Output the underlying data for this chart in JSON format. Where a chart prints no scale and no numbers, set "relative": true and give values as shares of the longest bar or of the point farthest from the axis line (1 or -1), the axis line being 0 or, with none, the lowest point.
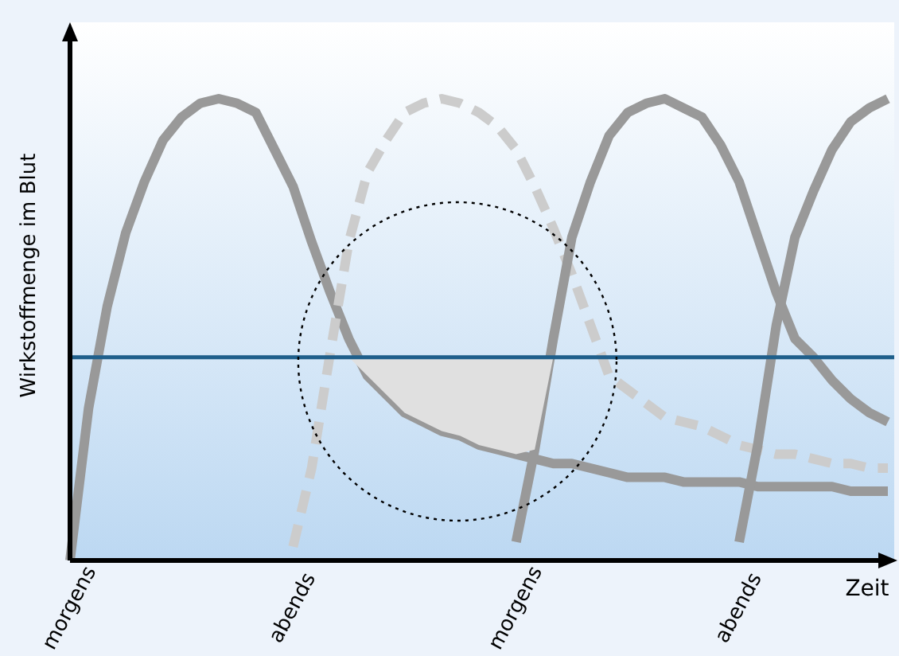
{
  "chart_data": {
    "type": "line",
    "relative": true,
    "ylabel": "Wirkstoffmenge im Blut",
    "xlabel": "Zeit",
    "categories": [
      "morgens",
      null,
      null,
      null,
      null,
      null,
      null,
      null,
      null,
      null,
      null,
      null,
      "abends",
      null,
      null,
      null,
      null,
      null,
      null,
      null,
      null,
      null,
      null,
      null,
      "morgens",
      null,
      null,
      null,
      null,
      null,
      null,
      null,
      null,
      null,
      null,
      null,
      "abends",
      null,
      null,
      null,
      null,
      null,
      null,
      null,
      null
    ],
    "grid": false,
    "marker": "none",
    "line_style": "solid",
    "series": [
      {
        "color": "#999999",
        "values": [
          0,
          0.33,
          0.55,
          0.71,
          0.82,
          0.91,
          0.96,
          0.99,
          1,
          0.99,
          0.97,
          0.89,
          0.81,
          0.69,
          0.58,
          0.48,
          0.4,
          0.36,
          0.32,
          0.3,
          0.28,
          0.27,
          0.25,
          0.24,
          0.23,
          0.22,
          0.21,
          0.21,
          0.2,
          0.19,
          0.18,
          0.18,
          0.18,
          0.17,
          0.17,
          0.17,
          0.17,
          0.16,
          0.16,
          0.16,
          0.16,
          0.16,
          0.15,
          0.15,
          0.15
        ]
      },
      {
        "color": "#cccccc",
        "line_style": "dashed",
        "values": [
          null,
          null,
          null,
          null,
          null,
          null,
          null,
          null,
          null,
          null,
          null,
          null,
          0.03,
          0.2,
          0.45,
          0.69,
          0.84,
          0.91,
          0.97,
          0.99,
          1,
          0.99,
          0.97,
          0.94,
          0.89,
          0.81,
          0.72,
          0.62,
          0.51,
          0.4,
          0.37,
          0.34,
          0.31,
          0.3,
          0.29,
          0.27,
          0.25,
          0.24,
          0.23,
          0.23,
          0.22,
          0.21,
          0.21,
          0.2,
          0.2
        ]
      },
      {
        "color": "#999999",
        "values": [
          null,
          null,
          null,
          null,
          null,
          null,
          null,
          null,
          null,
          null,
          null,
          null,
          null,
          null,
          null,
          null,
          null,
          null,
          null,
          null,
          null,
          null,
          null,
          null,
          0.04,
          0.24,
          0.48,
          0.7,
          0.82,
          0.92,
          0.97,
          0.99,
          1,
          0.98,
          0.96,
          0.9,
          0.82,
          0.7,
          0.58,
          0.48,
          0.44,
          0.39,
          0.35,
          0.32,
          0.3
        ]
      },
      {
        "color": "#999999",
        "values": [
          null,
          null,
          null,
          null,
          null,
          null,
          null,
          null,
          null,
          null,
          null,
          null,
          null,
          null,
          null,
          null,
          null,
          null,
          null,
          null,
          null,
          null,
          null,
          null,
          null,
          null,
          null,
          null,
          null,
          null,
          null,
          null,
          null,
          null,
          null,
          null,
          0.04,
          0.25,
          0.51,
          0.7,
          0.8,
          0.89,
          0.95,
          0.98,
          1
        ]
      }
    ],
    "ref_lines": [
      {
        "axis": "y",
        "value": 0.44,
        "color": "#1f5f8b"
      }
    ]
  }
}
